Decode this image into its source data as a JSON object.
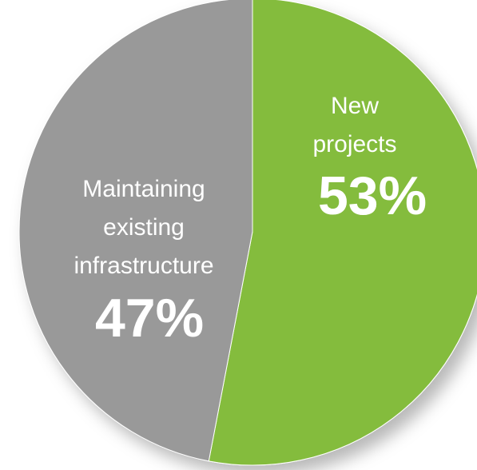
{
  "chart_data": {
    "type": "pie",
    "title": "",
    "slices": [
      {
        "name_lines": [
          "New",
          "projects"
        ],
        "value": 53,
        "value_label": "53%",
        "color": "#84bc3c"
      },
      {
        "name_lines": [
          "Maintaining",
          "existing",
          "infrastructure"
        ],
        "value": 47,
        "value_label": "47%",
        "color": "#999999"
      }
    ],
    "legend": "none",
    "start_angle_deg": 0,
    "direction": "clockwise"
  }
}
